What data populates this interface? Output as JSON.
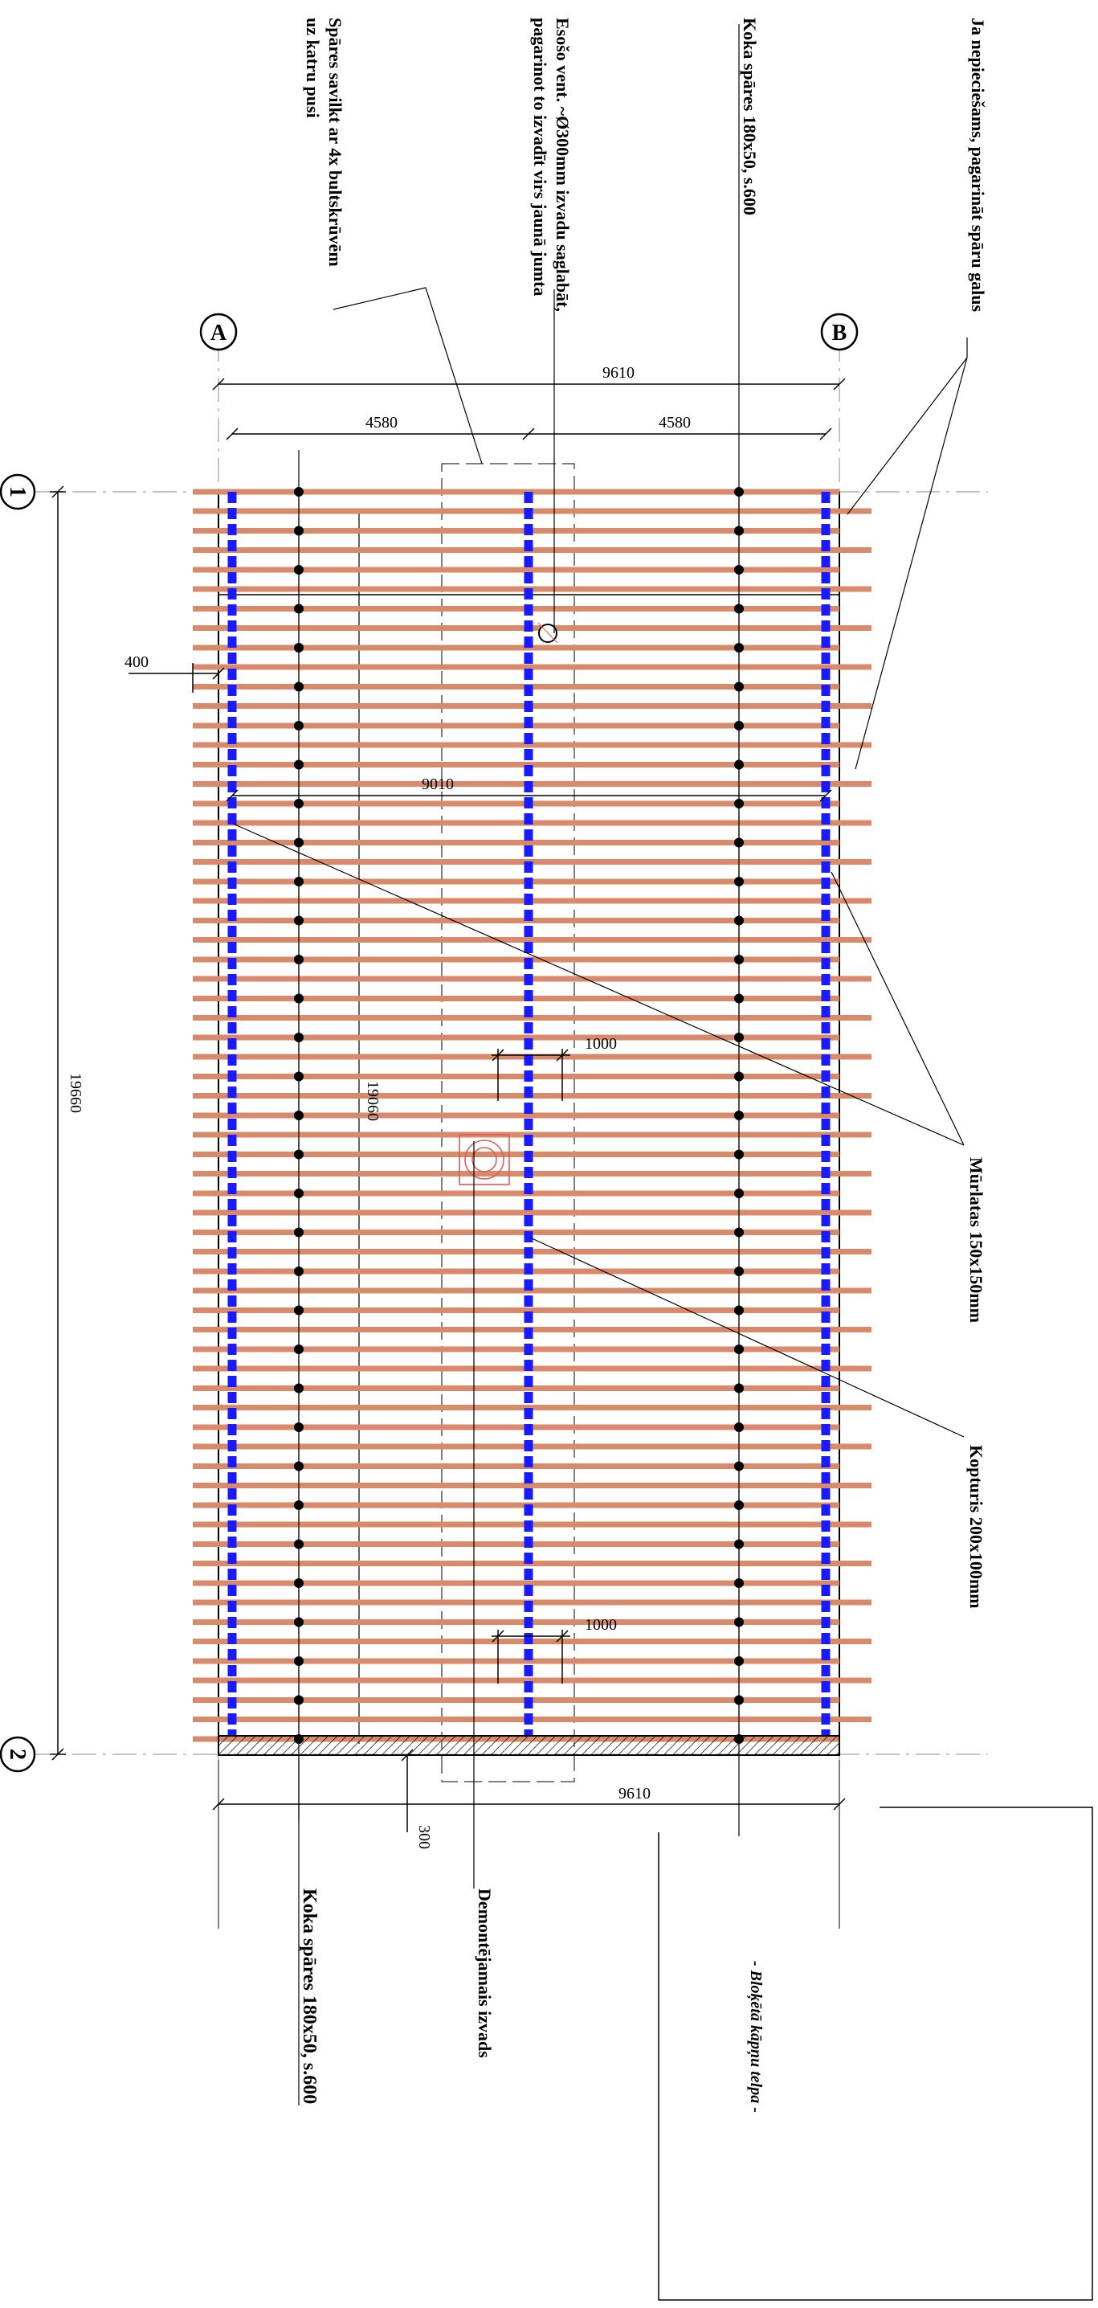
{
  "grid": {
    "axis_a": "A",
    "axis_b": "B",
    "axis_1": "1",
    "axis_2": "2"
  },
  "dimensions": {
    "overall_width_top": "9610",
    "left_span": "4580",
    "right_span": "4580",
    "inner_width": "9010",
    "overhang": "400",
    "length_outer": "19660",
    "length_inner": "19060",
    "spacing_upper": "1000",
    "spacing_lower": "1000",
    "overall_width_bottom": "9610",
    "wall_thickness": "300"
  },
  "annotations": {
    "bolts": [
      "Spāres savilkt ar 4x bultskrūvēm",
      "uz katru pusi"
    ],
    "vent": [
      "Esošo vent. ~Ø300mm izvadu saglabāt,",
      "pagarinot to izvadīt virs jaunā jumta"
    ],
    "rafters_top": "Koka spāres 180x50, s.600",
    "extend_rafters": "Ja nepieciešams, pagarināt spāru galus",
    "wall_plates": "Mūrlatas 150x150mm",
    "ridge_beam": "Kopturis 200x100mm",
    "rafters_bottom": "Koka spāres 180x50, s.600",
    "removed_vent": "Demontējamais izvads",
    "blocked_area": "- Bloķētā kāpņu telpa -"
  },
  "colors": {
    "rafter": "#d98a6a",
    "plate": "#1a1aff",
    "line": "#000000",
    "removed": "#e05a5a"
  },
  "icons": {
    "vent": "circle-vent-icon",
    "removed_vent": "removed-vent-icon"
  }
}
